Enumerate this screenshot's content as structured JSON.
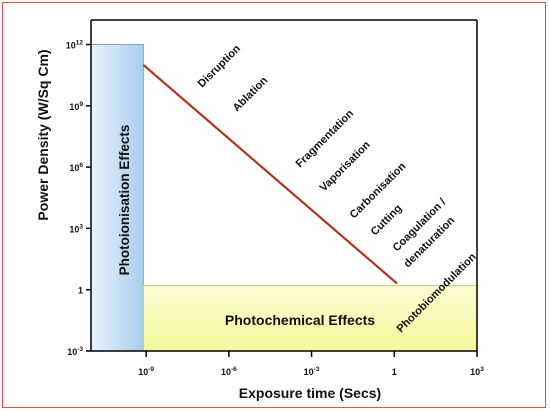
{
  "chart_data": {
    "type": "region-diagram",
    "xlabel": "Exposure time (Secs)",
    "ylabel": "Power Density (W/Sq Cm)",
    "x_log10_range": [
      -11,
      3
    ],
    "y_log10_range": [
      -3,
      13.2
    ],
    "x_ticks": [
      {
        "exp": -9,
        "label": "10-9",
        "base": "10",
        "power": "-9"
      },
      {
        "exp": -6,
        "label": "10-6",
        "base": "10",
        "power": "-6"
      },
      {
        "exp": -3,
        "label": "10-3",
        "base": "10",
        "power": "-3"
      },
      {
        "exp": 0,
        "label": "1",
        "base": "1",
        "power": ""
      },
      {
        "exp": 3,
        "label": "103",
        "base": "10",
        "power": "3"
      }
    ],
    "y_ticks": [
      {
        "exp": 12,
        "label": "1012",
        "base": "10",
        "power": "12"
      },
      {
        "exp": 9,
        "label": "109",
        "base": "10",
        "power": "9"
      },
      {
        "exp": 6,
        "label": "106",
        "base": "10",
        "power": "6"
      },
      {
        "exp": 3,
        "label": "103",
        "base": "10",
        "power": "3"
      },
      {
        "exp": 0,
        "label": "1",
        "base": "1",
        "power": ""
      },
      {
        "exp": -3,
        "label": "10-3",
        "base": "10",
        "power": "-3"
      }
    ],
    "regions": [
      {
        "name": "Photoionisation Effects",
        "x_log10": [
          -11,
          -9.1
        ],
        "y_log10": [
          -3,
          12
        ],
        "color": "#9ec5ea"
      },
      {
        "name": "Photochemical Effects",
        "x_log10": [
          -9.1,
          3
        ],
        "y_log10": [
          -3,
          0.2
        ],
        "color": "#fbfcb0"
      }
    ],
    "threshold_line": {
      "x_log10": [
        -9.1,
        0.1
      ],
      "y_log10": [
        11,
        0.3
      ],
      "color": "#b3321e"
    },
    "annotations": [
      "Disruption",
      "Ablation",
      "Fragmentation",
      "Vaporisation",
      "Carbonisation",
      "Cutting",
      "Coagulation /",
      "denaturation",
      "Photobiomodulation"
    ],
    "colors": {
      "frame": "#dc5050",
      "axis": "#000000"
    }
  }
}
